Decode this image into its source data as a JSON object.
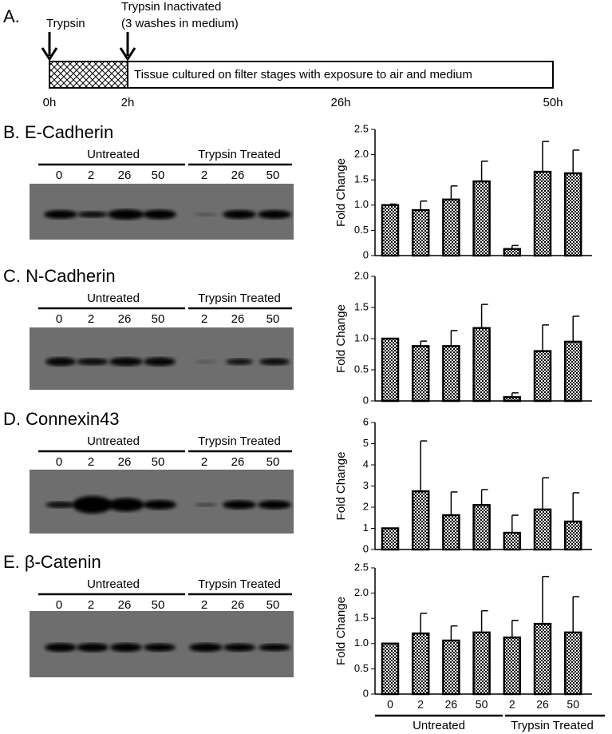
{
  "timeline": {
    "label": "A.",
    "start_event": "Trypsin",
    "stop_event": "Trypsin Inactivated",
    "stop_note": "(3 washes in medium)",
    "culture": "Tissue cultured on filter stages with exposure to air and medium",
    "ticks": [
      "0h",
      "2h",
      "26h",
      "50h"
    ]
  },
  "panels": [
    {
      "label": "B. E-Cadherin",
      "groups": [
        "Untreated",
        "Trypsin Treated"
      ],
      "lanes": [
        0,
        2,
        26,
        50,
        2,
        26,
        50
      ]
    },
    {
      "label": "C. N-Cadherin",
      "groups": [
        "Untreated",
        "Trypsin Treated"
      ],
      "lanes": [
        0,
        2,
        26,
        50,
        2,
        26,
        50
      ]
    },
    {
      "label": "D. Connexin43",
      "groups": [
        "Untreated",
        "Trypsin Treated"
      ],
      "lanes": [
        0,
        2,
        26,
        50,
        2,
        26,
        50
      ]
    },
    {
      "label": "E. β-Catenin",
      "groups": [
        "Untreated",
        "Trypsin Treated"
      ],
      "lanes": [
        0,
        2,
        26,
        50,
        2,
        26,
        50
      ]
    }
  ],
  "chart_data": [
    {
      "type": "bar",
      "ylabel": "Fold Change",
      "color": "#000000",
      "categories": [
        null,
        null,
        null,
        null,
        null,
        null,
        null
      ],
      "values": [
        1.0,
        0.9,
        1.11,
        1.47,
        0.13,
        1.66,
        1.63
      ],
      "errors": [
        0.02,
        0.18,
        0.27,
        0.4,
        0.07,
        0.6,
        0.46
      ],
      "ylim": [
        0,
        2.5
      ],
      "yticks": [
        0,
        0.5,
        {
          "value": 1,
          "label": "1.0"
        },
        1.5,
        {
          "value": 2,
          "label": "2.0"
        },
        2.5
      ]
    },
    {
      "type": "bar",
      "ylabel": "Fold Change",
      "color": "#000000",
      "categories": [
        null,
        null,
        null,
        null,
        null,
        null,
        null
      ],
      "values": [
        1.0,
        0.88,
        0.88,
        1.17,
        0.06,
        0.8,
        0.95
      ],
      "errors": [
        0,
        0.08,
        0.25,
        0.38,
        0.07,
        0.42,
        0.41
      ],
      "ylim": [
        0,
        2
      ],
      "yticks": [
        0,
        0.5,
        {
          "value": 1,
          "label": "1.0"
        },
        1.5,
        {
          "value": 2,
          "label": "2.0"
        }
      ]
    },
    {
      "type": "bar",
      "ylabel": "Fold Change",
      "color": "#000000",
      "categories": [
        null,
        null,
        null,
        null,
        null,
        null,
        null
      ],
      "values": [
        1.0,
        2.75,
        1.62,
        2.1,
        0.79,
        1.89,
        1.32
      ],
      "errors": [
        0,
        2.38,
        1.1,
        0.73,
        0.83,
        1.5,
        1.36
      ],
      "ylim": [
        0,
        6
      ],
      "yticks": [
        0,
        1,
        2,
        3,
        4,
        5,
        6
      ]
    },
    {
      "type": "bar",
      "ylabel": "Fold Change",
      "color": "#000000",
      "categories": [
        0,
        2,
        26,
        50,
        2,
        26,
        50
      ],
      "groups": [
        "Untreated",
        "Trypsin Treated"
      ],
      "values": [
        1.0,
        1.2,
        1.06,
        1.22,
        1.12,
        1.39,
        1.22
      ],
      "errors": [
        0,
        0.4,
        0.29,
        0.43,
        0.34,
        0.94,
        0.71
      ],
      "ylim": [
        0,
        2.5
      ],
      "yticks": [
        0,
        0.5,
        {
          "value": 1,
          "label": "1.0"
        },
        1.5,
        {
          "value": 2,
          "label": "2.0"
        },
        2.5
      ]
    }
  ]
}
